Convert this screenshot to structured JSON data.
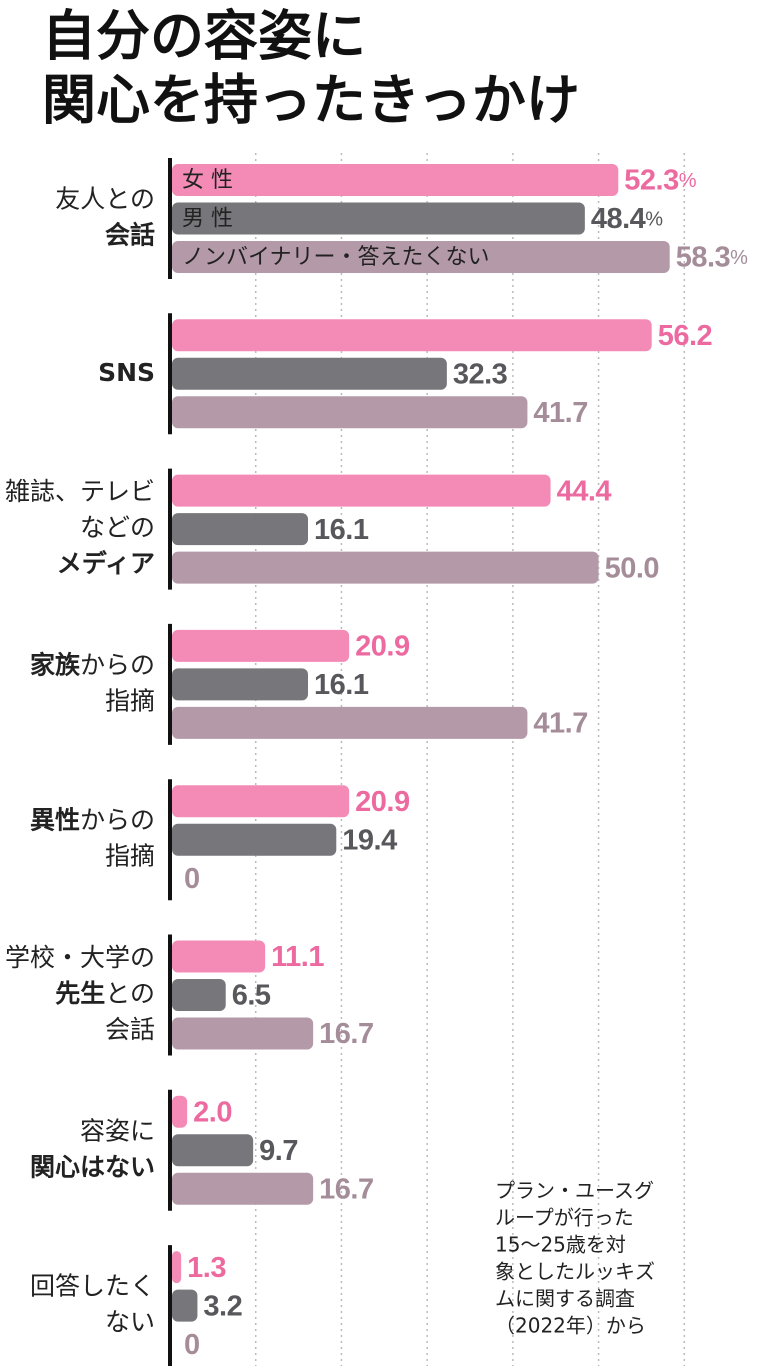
{
  "chart_data": {
    "type": "bar",
    "orientation": "horizontal",
    "title": [
      "自分の容姿に",
      "関心を持ったきっかけ"
    ],
    "categories": [
      [
        [
          {
            "text": "友人との"
          }
        ],
        [
          {
            "text": "会話",
            "bold": true
          }
        ]
      ],
      [
        [
          {
            "text": "SNS",
            "bold": true
          }
        ]
      ],
      [
        [
          {
            "text": "雑誌、テレビ"
          }
        ],
        [
          {
            "text": "などの"
          }
        ],
        [
          {
            "text": "メディア",
            "bold": true
          }
        ]
      ],
      [
        [
          {
            "text": "家族",
            "bold": true
          },
          {
            "text": "からの"
          }
        ],
        [
          {
            "text": "指摘"
          }
        ]
      ],
      [
        [
          {
            "text": "異性",
            "bold": true
          },
          {
            "text": "からの"
          }
        ],
        [
          {
            "text": "指摘"
          }
        ]
      ],
      [
        [
          {
            "text": "学校・大学の"
          }
        ],
        [
          {
            "text": "先生",
            "bold": true
          },
          {
            "text": "との"
          }
        ],
        [
          {
            "text": "会話"
          }
        ]
      ],
      [
        [
          {
            "text": "容姿に"
          }
        ],
        [
          {
            "text": "関心はない",
            "bold": true
          }
        ]
      ],
      [
        [
          {
            "text": "回答したく"
          }
        ],
        [
          {
            "text": "ない"
          }
        ]
      ]
    ],
    "series": [
      {
        "name": "女 性",
        "color": "#f48bb6",
        "label_color": "#ec6aa0",
        "values": [
          52.3,
          56.2,
          44.4,
          20.9,
          20.9,
          11.1,
          2.0,
          1.3
        ],
        "value_labels": [
          "52.3%",
          "56.2",
          "44.4",
          "20.9",
          "20.9",
          "11.1",
          "2.0",
          "1.3"
        ]
      },
      {
        "name": "男 性",
        "color": "#76767b",
        "label_color": "#58585c",
        "values": [
          48.4,
          32.3,
          16.1,
          16.1,
          19.4,
          6.5,
          9.7,
          3.2
        ],
        "value_labels": [
          "48.4%",
          "32.3",
          "16.1",
          "16.1",
          "19.4",
          "6.5",
          "9.7",
          "3.2"
        ]
      },
      {
        "name": "ノンバイナリー・答えたくない",
        "color": "#b49aa8",
        "label_color": "#a48c99",
        "values": [
          58.3,
          41.7,
          50.0,
          41.7,
          0,
          16.7,
          16.7,
          0
        ],
        "value_labels": [
          "58.3%",
          "41.7",
          "50.0",
          "41.7",
          "0",
          "16.7",
          "16.7",
          "0"
        ]
      }
    ],
    "xlim": [
      0,
      70
    ],
    "xticks": [
      10,
      20,
      30,
      40,
      50,
      60
    ],
    "grid": true,
    "note": [
      "プラン・ユースグ",
      "ループが行った",
      "15～25歳を対",
      "象としたルッキズ",
      "ムに関する調査",
      "（2022年）から"
    ]
  }
}
